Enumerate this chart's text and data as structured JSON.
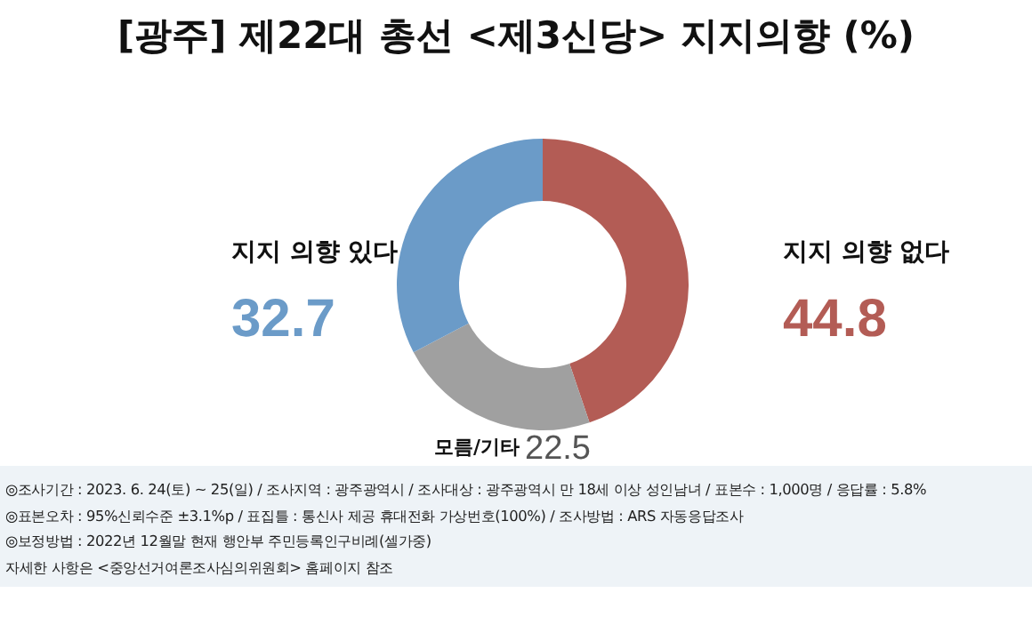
{
  "chart_data": {
    "type": "donut",
    "title": "[광주] 제22대 총선 <제3신당> 지지의향 (%)",
    "categories": [
      "지지 의향 없다",
      "모름/기타",
      "지지 의향 있다"
    ],
    "values": [
      44.8,
      22.5,
      32.7
    ],
    "colors": [
      "#b35c55",
      "#a0a0a0",
      "#6b9bc8"
    ],
    "data_labels": true,
    "annotations": [
      "◎조사기간 : 2023. 6. 24(토) ~ 25(일) / 조사지역 : 광주광역시 / 조사대상 : 광주광역시 만 18세 이상 성인남녀 / 표본수 : 1,000명 / 응답률 : 5.8%",
      "◎표본오차 : 95%신뢰수준 ±3.1%p  / 표집틀 : 통신사 제공 휴대전화 가상번호(100%) / 조사방법 : ARS 자동응답조사",
      "◎보정방법 : 2022년 12월말 현재 행안부 주민등록인구비례(셀가중)",
      "자세한 사항은 <중앙선거여론조사심의위원회> 홈페이지 참조"
    ]
  }
}
